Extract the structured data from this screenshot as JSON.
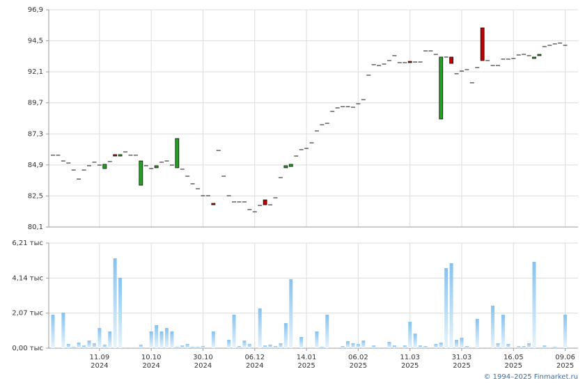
{
  "chart_data": [
    {
      "type": "candlestick",
      "open": [
        85.65,
        85.65,
        85.21,
        85.05,
        84.51,
        83.81,
        84.51,
        84.84,
        85.11,
        84.89,
        84.62,
        85.16,
        85.7,
        85.59,
        85.91,
        85.65,
        85.65,
        83.33,
        84.84,
        84.62,
        84.68,
        85.11,
        85.21,
        84.89,
        84.68,
        84.57,
        84.03,
        83.44,
        83.06,
        82.52,
        82.52,
        81.93,
        86.02,
        84.03,
        82.52,
        82.04,
        82.04,
        82.04,
        81.45,
        81.28,
        81.77,
        82.2,
        81.82,
        82.36,
        83.92,
        84.68,
        84.78,
        85.59,
        86.08,
        86.18,
        86.61,
        87.53,
        88.01,
        88.12,
        89.04,
        89.31,
        89.41,
        89.41,
        89.36,
        89.63,
        89.95,
        91.84,
        92.65,
        92.59,
        92.7,
        92.97,
        93.35,
        92.81,
        92.81,
        92.91,
        92.86,
        92.86,
        93.72,
        93.72,
        93.45,
        88.45,
        93.24,
        93.24,
        91.95,
        92.16,
        92.27,
        91.25,
        92.43,
        95.5,
        92.97,
        92.59,
        92.59,
        93.08,
        93.08,
        93.13,
        93.4,
        93.45,
        93.35,
        93.13,
        93.35,
        94.05,
        94.15,
        94.26,
        94.32,
        94.15
      ],
      "close": [
        85.65,
        85.65,
        85.21,
        85.05,
        84.51,
        83.81,
        84.51,
        84.84,
        85.11,
        84.89,
        84.95,
        85.16,
        85.59,
        85.7,
        85.91,
        85.65,
        85.65,
        85.21,
        84.84,
        84.62,
        84.84,
        85.11,
        85.21,
        84.89,
        86.94,
        84.57,
        84.03,
        83.44,
        83.06,
        82.52,
        82.52,
        81.82,
        86.02,
        84.03,
        82.52,
        82.04,
        82.04,
        82.04,
        81.45,
        81.28,
        81.77,
        81.82,
        81.82,
        82.36,
        83.92,
        84.84,
        84.95,
        85.59,
        86.08,
        86.18,
        86.61,
        87.53,
        88.01,
        88.12,
        89.04,
        89.31,
        89.41,
        89.41,
        89.36,
        89.63,
        89.95,
        91.84,
        92.65,
        92.59,
        92.7,
        92.97,
        93.35,
        92.81,
        92.81,
        92.81,
        92.86,
        92.86,
        93.72,
        93.72,
        93.45,
        93.24,
        93.24,
        92.75,
        91.95,
        92.16,
        92.27,
        91.25,
        92.43,
        92.97,
        92.97,
        92.59,
        92.59,
        93.08,
        93.08,
        93.13,
        93.4,
        93.45,
        93.35,
        93.24,
        93.45,
        94.05,
        94.15,
        94.26,
        94.32,
        94.15
      ],
      "up_color": "#22a022",
      "down_color": "#c00000",
      "ylim": [
        80.1,
        96.9
      ],
      "yticks": [
        {
          "value": 80.1,
          "label": "80,1"
        },
        {
          "value": 82.5,
          "label": "82,5"
        },
        {
          "value": 84.9,
          "label": "84,9"
        },
        {
          "value": 87.3,
          "label": "87,3"
        },
        {
          "value": 89.7,
          "label": "89,7"
        },
        {
          "value": 92.1,
          "label": "92,1"
        },
        {
          "value": 94.5,
          "label": "94,5"
        },
        {
          "value": 96.9,
          "label": "96,9"
        }
      ],
      "grid": true
    },
    {
      "type": "bar",
      "categories": [
        null,
        null,
        null,
        null,
        null,
        null,
        null,
        null,
        null,
        [
          "11.09",
          "2024"
        ],
        null,
        null,
        null,
        null,
        null,
        null,
        null,
        null,
        null,
        [
          "10.10",
          "2024"
        ],
        null,
        null,
        null,
        null,
        null,
        null,
        null,
        null,
        null,
        [
          "30.10",
          "2024"
        ],
        null,
        null,
        null,
        null,
        null,
        null,
        null,
        null,
        null,
        [
          "06.12",
          "2024"
        ],
        null,
        null,
        null,
        null,
        null,
        null,
        null,
        null,
        null,
        [
          "14.01",
          "2025"
        ],
        null,
        null,
        null,
        null,
        null,
        null,
        null,
        null,
        null,
        [
          "06.02",
          "2025"
        ],
        null,
        null,
        null,
        null,
        null,
        null,
        null,
        null,
        null,
        [
          "11.03",
          "2025"
        ],
        null,
        null,
        null,
        null,
        null,
        null,
        null,
        null,
        null,
        [
          "31.03",
          "2025"
        ],
        null,
        null,
        null,
        null,
        null,
        null,
        null,
        null,
        null,
        [
          "16.05",
          "2025"
        ],
        null,
        null,
        null,
        null,
        null,
        null,
        null,
        null,
        null,
        [
          "09.06",
          "2025"
        ]
      ],
      "values": [
        1.98,
        0.04,
        2.1,
        0.25,
        0.08,
        0.33,
        0.16,
        0.45,
        0.29,
        1.19,
        0.21,
        0.99,
        5.31,
        4.16,
        0.04,
        0.04,
        0.04,
        0.21,
        0.04,
        0.99,
        1.36,
        0.99,
        1.19,
        0.99,
        0.08,
        0.16,
        0.25,
        0.08,
        0.08,
        0.12,
        0.04,
        0.99,
        0.04,
        0.04,
        0.49,
        1.98,
        0.12,
        0.45,
        0.25,
        0.04,
        2.35,
        0.16,
        0.21,
        0.12,
        0.29,
        1.48,
        4.07,
        0.04,
        0.66,
        0.04,
        0.04,
        0.99,
        0.08,
        1.98,
        0.04,
        0.04,
        0.12,
        0.41,
        0.29,
        0.25,
        0.45,
        0.04,
        0.16,
        0.04,
        0.04,
        0.37,
        0.16,
        0.04,
        0.16,
        1.56,
        0.86,
        0.16,
        0.12,
        0.04,
        0.25,
        0.33,
        4.73,
        5.02,
        0.49,
        0.62,
        0.12,
        0.04,
        1.73,
        0.04,
        0.04,
        2.51,
        0.29,
        1.98,
        0.25,
        0.04,
        0.12,
        0.12,
        0.29,
        5.1,
        0.04,
        0.16,
        0.04,
        0.08,
        0.04,
        1.98
      ],
      "color": "#86c2ee",
      "ylim": [
        0,
        6.21
      ],
      "yticks": [
        {
          "value": 0,
          "label": "0,00 тыс"
        },
        {
          "value": 2.07,
          "label": "2,07 тыс"
        },
        {
          "value": 4.14,
          "label": "4,14 тыс"
        },
        {
          "value": 6.21,
          "label": "6,21 тыс"
        }
      ],
      "grid": true
    }
  ],
  "source": "© 1994–2025 Finmarket.ru"
}
